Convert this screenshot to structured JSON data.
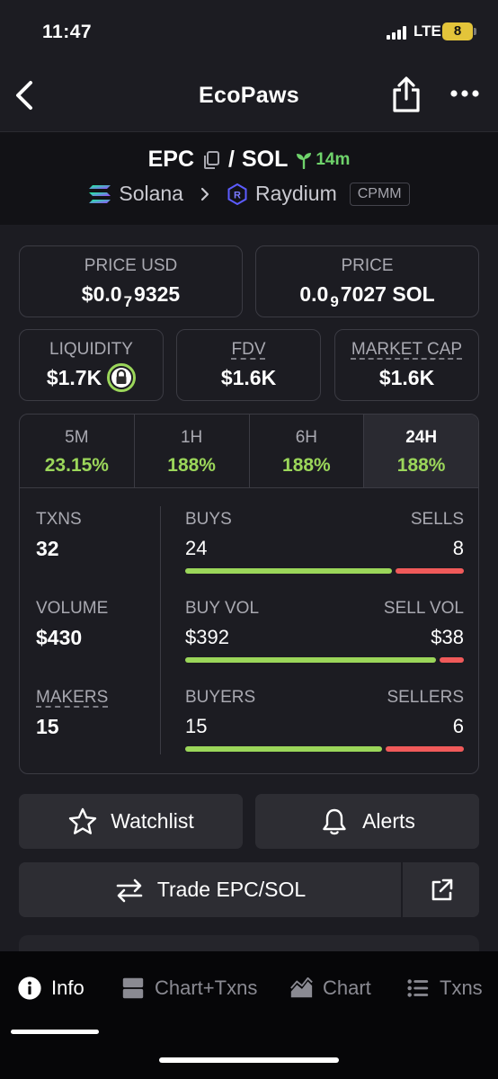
{
  "status_bar": {
    "time": "11:47",
    "network": "LTE",
    "battery": "8"
  },
  "header": {
    "title": "EcoPaws"
  },
  "pair": {
    "base": "EPC",
    "separator": "/",
    "quote": "SOL",
    "age": "14m",
    "chain": "Solana",
    "dex": "Raydium",
    "pool_type": "CPMM"
  },
  "price_usd": {
    "label": "PRICE USD",
    "prefix": "$0.0",
    "zeros": "7",
    "digits": "9325"
  },
  "price_native": {
    "label": "PRICE",
    "prefix": "0.0",
    "zeros": "9",
    "digits": "7027 SOL"
  },
  "liquidity": {
    "label": "LIQUIDITY",
    "value": "$1.7K"
  },
  "fdv": {
    "label": "FDV",
    "value": "$1.6K"
  },
  "market_cap": {
    "label": "MARKET CAP",
    "value": "$1.6K"
  },
  "timeframes": [
    {
      "label": "5M",
      "change": "23.15%",
      "change_pct": 23.15,
      "active": false
    },
    {
      "label": "1H",
      "change": "188%",
      "change_pct": 188,
      "active": false
    },
    {
      "label": "6H",
      "change": "188%",
      "change_pct": 188,
      "active": false
    },
    {
      "label": "24H",
      "change": "188%",
      "change_pct": 188,
      "active": true
    }
  ],
  "stats": {
    "txns": {
      "label": "TXNS",
      "value": "32"
    },
    "volume": {
      "label": "VOLUME",
      "value": "$430"
    },
    "makers": {
      "label": "MAKERS",
      "value": "15"
    },
    "buys": {
      "left_label": "BUYS",
      "right_label": "SELLS",
      "left_value": "24",
      "right_value": "8",
      "left_amount": 24,
      "right_amount": 8
    },
    "buy_vol": {
      "left_label": "BUY VOL",
      "right_label": "SELL VOL",
      "left_value": "$392",
      "right_value": "$38",
      "left_amount": 392,
      "right_amount": 38
    },
    "buyers": {
      "left_label": "BUYERS",
      "right_label": "SELLERS",
      "left_value": "15",
      "right_value": "6",
      "left_amount": 15,
      "right_amount": 6
    }
  },
  "actions": {
    "watchlist": "Watchlist",
    "alerts": "Alerts",
    "trade": "Trade EPC/SOL"
  },
  "bottom_nav": [
    {
      "label": "Info",
      "icon": "info-icon",
      "active": true
    },
    {
      "label": "Chart+Txns",
      "icon": "chart-txns-icon",
      "active": false
    },
    {
      "label": "Chart",
      "icon": "chart-icon",
      "active": false
    },
    {
      "label": "Txns",
      "icon": "list-icon",
      "active": false
    }
  ],
  "colors": {
    "background": "#1c1c22",
    "positive": "#9bd65a",
    "negative": "#f05a5a",
    "age_green": "#6fd36b"
  }
}
